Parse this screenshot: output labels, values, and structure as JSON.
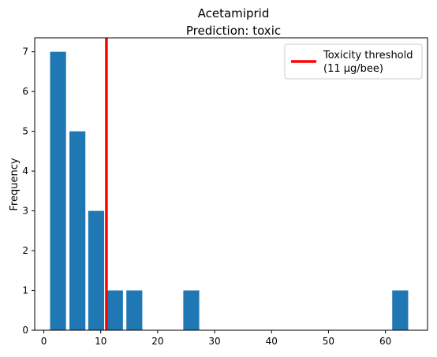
{
  "chart_data": {
    "type": "bar",
    "title": "Acetamiprid",
    "subtitle": "Prediction: toxic",
    "xlabel": "",
    "ylabel": "Frequency",
    "xlim": [
      -1.6,
      67.4
    ],
    "ylim": [
      0,
      7.35
    ],
    "xticks": [
      0,
      10,
      20,
      30,
      40,
      50,
      60
    ],
    "yticks": [
      0,
      1,
      2,
      3,
      4,
      5,
      6,
      7
    ],
    "bars": [
      {
        "x": 2.5,
        "value": 7
      },
      {
        "x": 5.9,
        "value": 5
      },
      {
        "x": 9.2,
        "value": 3
      },
      {
        "x": 12.5,
        "value": 1
      },
      {
        "x": 15.9,
        "value": 1
      },
      {
        "x": 25.9,
        "value": 1
      },
      {
        "x": 62.6,
        "value": 1
      }
    ],
    "bar_width": 2.8,
    "bar_color": "#1f77b4",
    "threshold": {
      "value": 11,
      "color": "#ff0000",
      "legend_line1": "Toxicity threshold",
      "legend_line2": "(11 µg/bee)"
    },
    "legend_position": "upper-right",
    "grid": false
  }
}
